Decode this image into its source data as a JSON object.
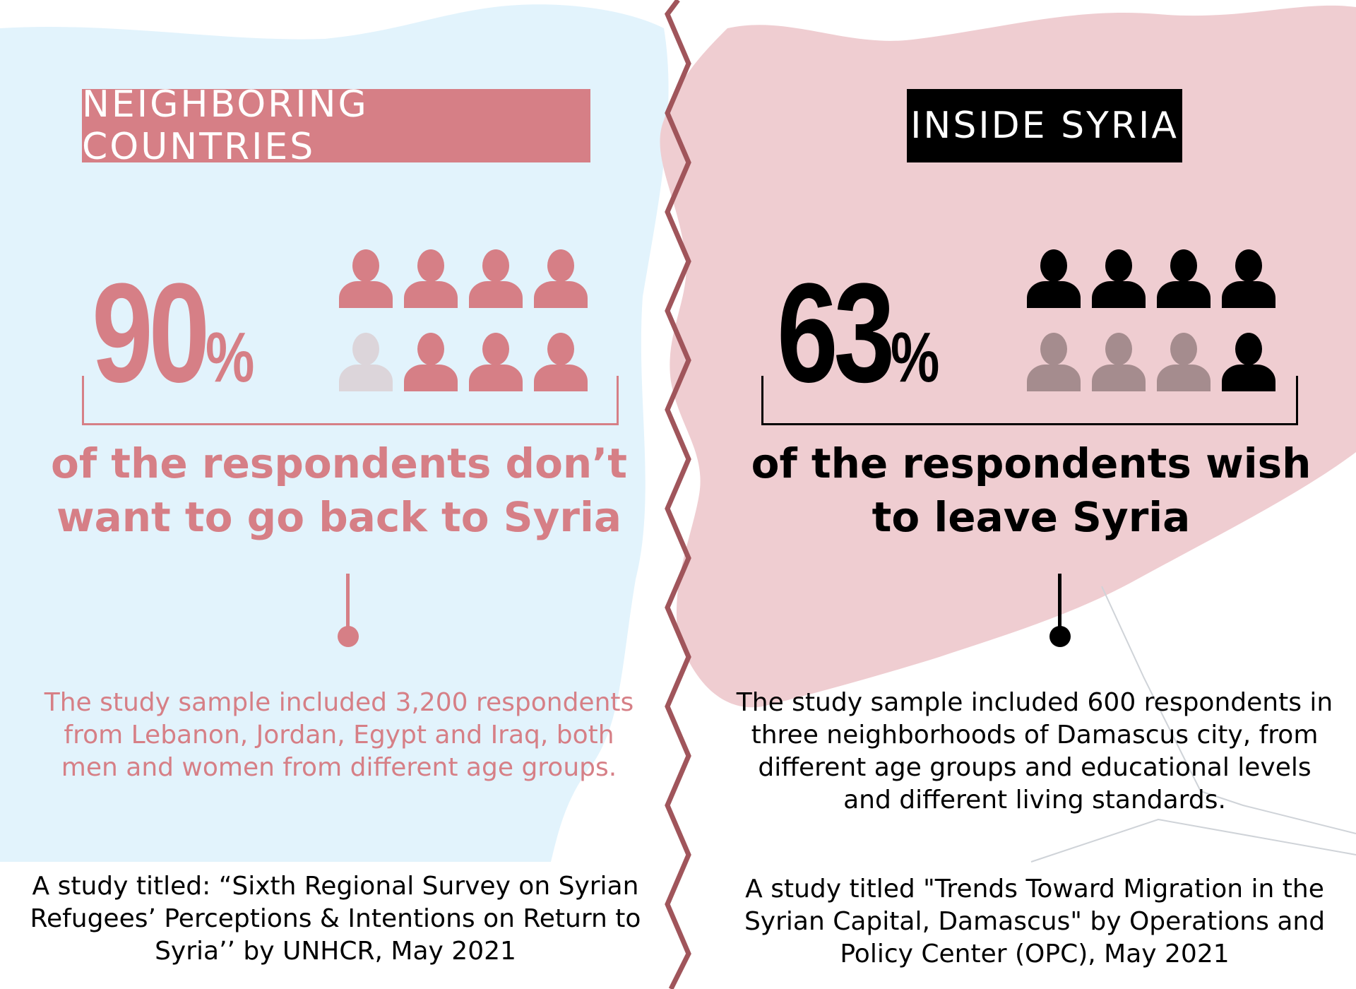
{
  "colors": {
    "accent": "#d67f86",
    "accent_light_bg": "#e2f3fc",
    "syria_map": "#efcdd1",
    "dark": "#000000",
    "muted_person_left": "#dcd5da",
    "muted_person_right": "#a58c8e",
    "divider": "#a0555b"
  },
  "left": {
    "label": "NEIGHBORING COUNTRIES",
    "percent_value": "90",
    "percent_sign": "%",
    "people_total": 8,
    "people_highlighted": 7,
    "claim": "of the respondents don’t want to go back to Syria",
    "sample_text": "The study sample included 3,200 respondents from Lebanon, Jordan, Egypt and Iraq, both men and women from different age groups.",
    "source_text": "A study titled: “Sixth Regional Survey on Syrian Refugees’ Perceptions & Intentions on Return to Syria’’ by UNHCR, May 2021"
  },
  "right": {
    "label": "INSIDE SYRIA",
    "percent_value": "63",
    "percent_sign": "%",
    "people_total": 8,
    "people_highlighted": 5,
    "claim": "of the respondents wish to leave Syria",
    "sample_text": "The study sample included 600 respondents in three neighborhoods of Damascus city, from different age groups and educational levels and different living standards.",
    "source_text": "A study titled \"Trends Toward Migration in the Syrian Capital, Damascus\" by Operations and Policy Center (OPC), May 2021"
  }
}
